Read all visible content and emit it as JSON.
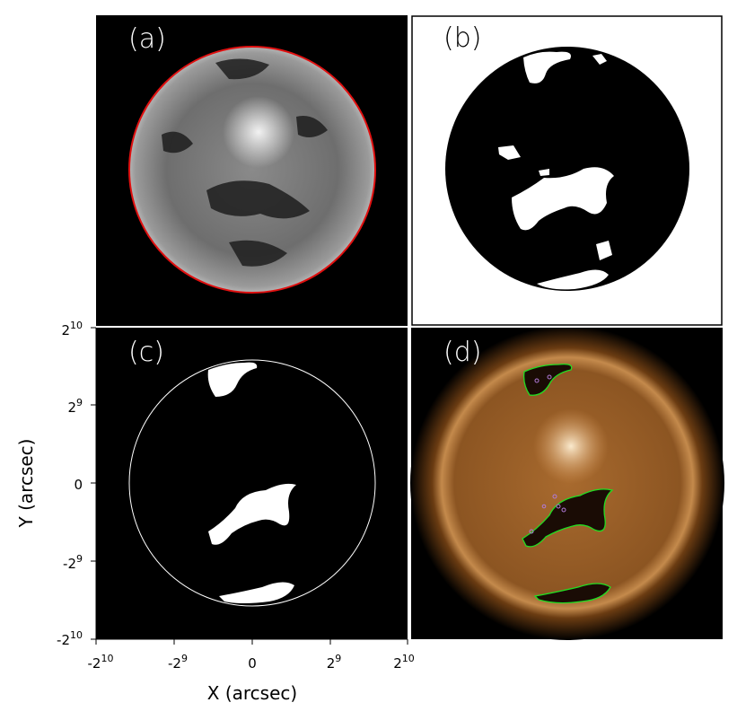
{
  "figure": {
    "panels": [
      {
        "id": "a",
        "label": "(a)"
      },
      {
        "id": "b",
        "label": "(b)"
      },
      {
        "id": "c",
        "label": "(c)"
      },
      {
        "id": "d",
        "label": "(d)"
      }
    ],
    "axes": {
      "xlabel": "X (arcsec)",
      "ylabel": "Y (arcsec)",
      "x_ticks": [
        {
          "base": "-2",
          "exp": "10"
        },
        {
          "base": "-2",
          "exp": "9"
        },
        {
          "base": "0",
          "exp": ""
        },
        {
          "base": "2",
          "exp": "9"
        },
        {
          "base": "2",
          "exp": "10"
        }
      ],
      "y_ticks": [
        {
          "base": "2",
          "exp": "10"
        },
        {
          "base": "2",
          "exp": "9"
        },
        {
          "base": "0",
          "exp": ""
        },
        {
          "base": "-2",
          "exp": "9"
        },
        {
          "base": "-2",
          "exp": "10"
        }
      ]
    },
    "colors": {
      "limb_contour": "#e01010",
      "boundary_contour": "#22dd22",
      "mask_fill": "#ffffff",
      "background": "#000000",
      "aia_tint": "#a8692a"
    }
  }
}
